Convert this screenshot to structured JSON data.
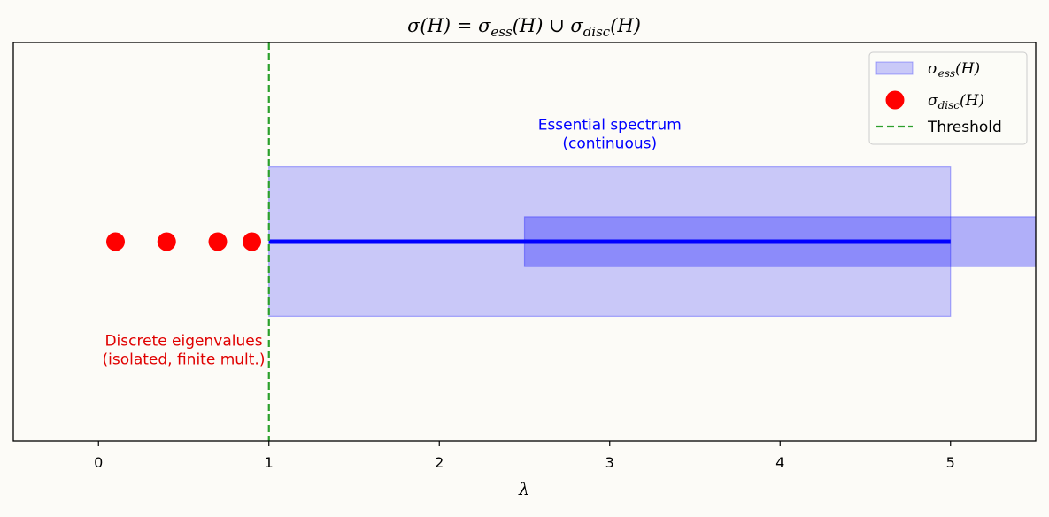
{
  "chart_data": {
    "type": "spectrum-diagram",
    "title": "σ(H) = σ_ess(H) ∪ σ_disc(H)",
    "title_parts": {
      "lhs": "σ(H) = σ",
      "ess_sub": "ess",
      "mid": "(H) ∪ σ",
      "disc_sub": "disc",
      "rhs": "(H)"
    },
    "xlabel": "λ",
    "xlim": [
      -0.5,
      5.5
    ],
    "ylim": [
      -0.6,
      0.6
    ],
    "xticks": [
      0,
      1,
      2,
      3,
      4,
      5
    ],
    "xtick_labels": [
      "0",
      "1",
      "2",
      "3",
      "4",
      "5"
    ],
    "grid": false,
    "legend_position": "top-right",
    "discrete_eigenvalues": {
      "x": [
        0.1,
        0.4,
        0.7,
        0.9
      ],
      "y": 0,
      "color": "#ff0000"
    },
    "essential_line": {
      "x_start": 1,
      "x_end": 5,
      "y": 0,
      "color": "#0000ff"
    },
    "essential_bands": [
      {
        "x_start": 1,
        "x_end": 5,
        "y_start": -0.225,
        "y_end": 0.225,
        "color": "#0000ff",
        "alpha": 0.2
      },
      {
        "x_start": 2.5,
        "x_end": 5.5,
        "y_start": -0.075,
        "y_end": 0.075,
        "color": "#0000ff",
        "alpha": 0.3
      }
    ],
    "threshold": {
      "x": 1,
      "color": "#2ca02c"
    },
    "legend": [
      {
        "kind": "patch",
        "symbol": "σ",
        "sub": "ess",
        "tail": "(H)",
        "color": "#0000ff"
      },
      {
        "kind": "marker",
        "symbol": "σ",
        "sub": "disc",
        "tail": "(H)",
        "color": "#ff0000"
      },
      {
        "kind": "dashed-line",
        "text": "Threshold",
        "color": "#2ca02c"
      }
    ],
    "annotations": [
      {
        "id": "essential",
        "lines": [
          "Essential spectrum",
          "(continuous)"
        ],
        "x": 3.0,
        "y": 0.325,
        "color": "#0000ff"
      },
      {
        "id": "discrete",
        "lines": [
          "Discrete eigenvalues",
          "(isolated, finite mult.)"
        ],
        "x": 0.5,
        "y": -0.325,
        "color": "#e00000"
      }
    ]
  }
}
